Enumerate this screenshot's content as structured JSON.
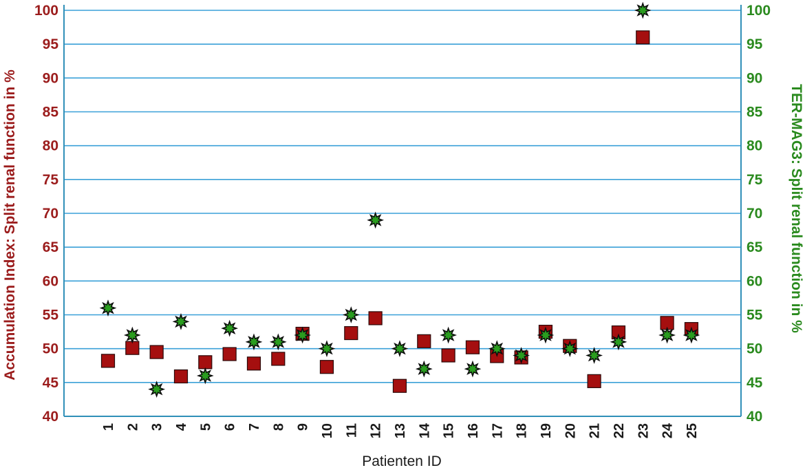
{
  "chart_data": {
    "type": "scatter",
    "xlabel": "Patienten ID",
    "ylabel_left": "Accumulation Index: Split renal function in %",
    "ylabel_right": "TER-MAG3: Split renal function in %",
    "ylim": [
      40,
      100
    ],
    "yticks": [
      40,
      45,
      50,
      55,
      60,
      65,
      70,
      75,
      80,
      85,
      90,
      95,
      100
    ],
    "grid": true,
    "categories": [
      "1",
      "2",
      "3",
      "4",
      "5",
      "6",
      "7",
      "8",
      "9",
      "10",
      "11",
      "12",
      "13",
      "14",
      "15",
      "16",
      "17",
      "18",
      "19",
      "20",
      "21",
      "22",
      "23",
      "24",
      "25"
    ],
    "series": [
      {
        "marker": "square",
        "color": "#a50f0f",
        "axis": "left",
        "values": [
          48.2,
          50.1,
          49.5,
          45.9,
          48.0,
          49.2,
          47.8,
          48.5,
          52.2,
          47.3,
          52.3,
          54.5,
          44.5,
          51.1,
          49.0,
          50.2,
          48.9,
          48.7,
          52.5,
          50.4,
          45.2,
          52.4,
          96.0,
          53.8,
          52.9
        ]
      },
      {
        "marker": "star",
        "color": "#2a9d1f",
        "axis": "right",
        "values": [
          56,
          52,
          44,
          54,
          46,
          53,
          51,
          51,
          52,
          50,
          55,
          69,
          50,
          47,
          52,
          47,
          50,
          49,
          52,
          50,
          49,
          51,
          100,
          52,
          52
        ]
      }
    ]
  },
  "colors": {
    "left_axis": "#9b1c1c",
    "right_axis": "#2a8a1e",
    "grid": "#3aa0d8",
    "axis_line": "#2f8fb8"
  }
}
